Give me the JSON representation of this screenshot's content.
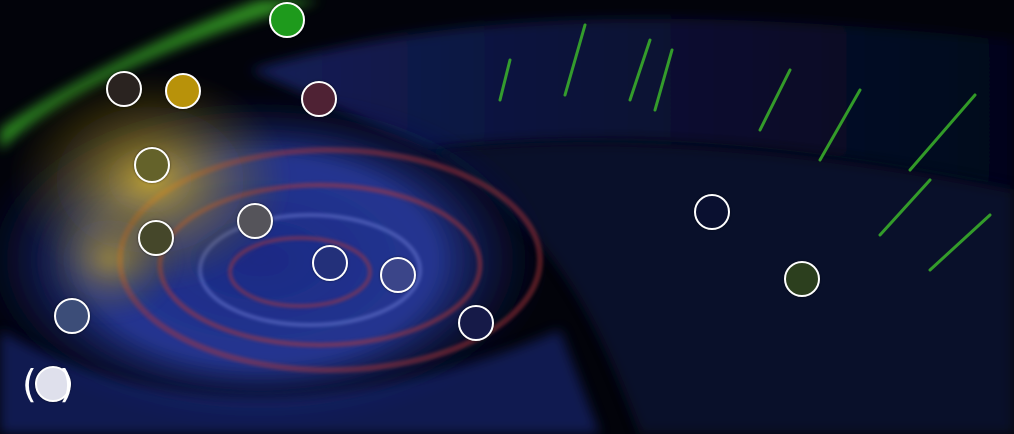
{
  "scene": {
    "description_icon": "volume-render-icon",
    "palette": {
      "background": "#02030a",
      "swirl_blue": "#2a3fa8",
      "swirl_red": "#b2393a",
      "plume_yellow": "#d6b21c",
      "plume_green": "#3fbf2a"
    }
  },
  "markers": [
    {
      "id": "marker-1",
      "color": "#1e9a1c"
    },
    {
      "id": "marker-2",
      "color": "#2a2320"
    },
    {
      "id": "marker-3",
      "color": "#b8920a"
    },
    {
      "id": "marker-4",
      "color": "#4f2234"
    },
    {
      "id": "marker-5",
      "color": "#64622a"
    },
    {
      "id": "marker-6",
      "color": "#55545a"
    },
    {
      "id": "marker-7",
      "color": "#45472a"
    },
    {
      "id": "marker-8",
      "color": "#23307a"
    },
    {
      "id": "marker-9",
      "color": "#3b4589"
    },
    {
      "id": "marker-10",
      "color": "#0a1030"
    },
    {
      "id": "marker-11",
      "color": "#2c3f1e"
    },
    {
      "id": "marker-12",
      "color": "#3c4d78"
    },
    {
      "id": "marker-13",
      "color": "#161a48"
    },
    {
      "id": "marker-14",
      "color": "#dfe0ec"
    }
  ]
}
